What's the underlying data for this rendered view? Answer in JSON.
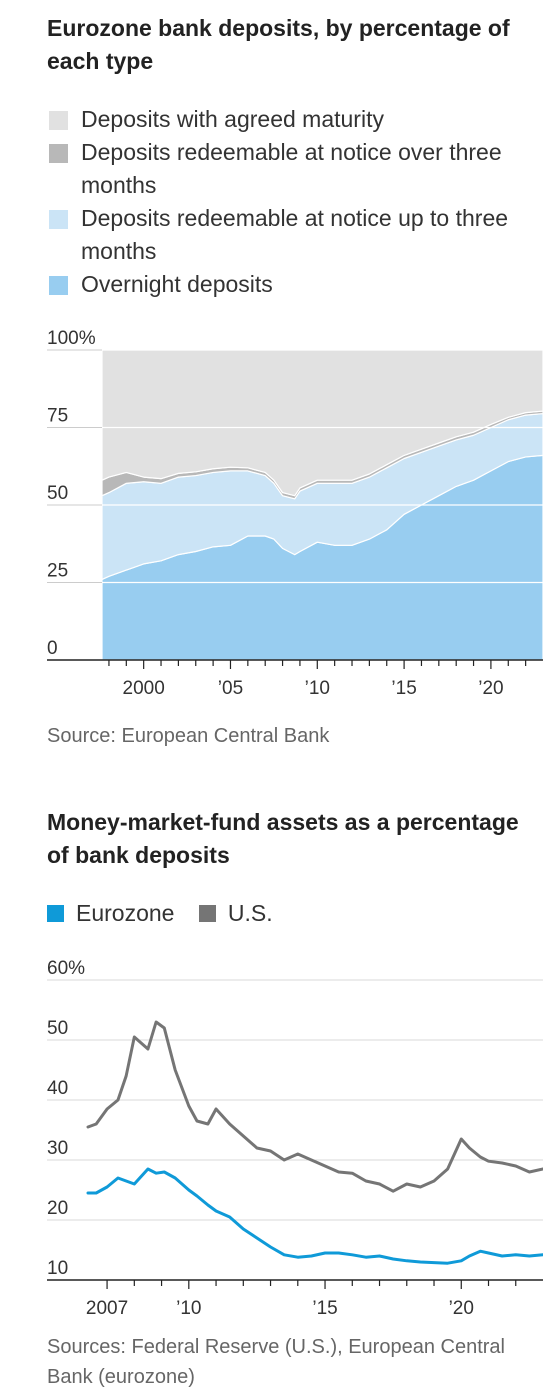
{
  "chart_data": [
    {
      "type": "area",
      "stacked": true,
      "title": "Eurozone bank deposits, by percentage of each type",
      "y_unit_label": "100%",
      "ylim": [
        0,
        100
      ],
      "yticks": [
        "0",
        "25",
        "50",
        "75",
        "100%"
      ],
      "xlim": [
        1997.5,
        2023
      ],
      "xticks": [
        {
          "value": 2000,
          "label": "2000"
        },
        {
          "value": 2005,
          "label": "’05"
        },
        {
          "value": 2010,
          "label": "’10"
        },
        {
          "value": 2015,
          "label": "’15"
        },
        {
          "value": 2020,
          "label": "’20"
        }
      ],
      "grid": true,
      "legend_position": "top",
      "source": "Source: European Central Bank",
      "x": [
        1997.6,
        1998,
        1999,
        2000,
        2001,
        2002,
        2003,
        2004,
        2005,
        2006,
        2007,
        2007.5,
        2008,
        2008.7,
        2009,
        2010,
        2011,
        2012,
        2013,
        2014,
        2015,
        2016,
        2017,
        2018,
        2019,
        2020,
        2021,
        2022,
        2023
      ],
      "series": [
        {
          "name": "Overnight deposits",
          "color": "#98cdf0",
          "values": [
            26,
            27,
            29,
            31,
            32,
            34,
            35,
            36.5,
            37,
            40,
            40,
            39,
            36,
            34,
            35,
            38,
            37,
            37,
            39,
            42,
            47,
            50,
            53,
            56,
            58,
            61,
            64,
            65.5,
            66
          ]
        },
        {
          "name": "Deposits redeemable at notice up to three months",
          "color": "#cbe4f6",
          "values": [
            27,
            27,
            28,
            26.5,
            25,
            25,
            24.5,
            24,
            24,
            21,
            19.5,
            18,
            17,
            18,
            19.5,
            19,
            20,
            20,
            20,
            20,
            18,
            17,
            16,
            15,
            14.5,
            14,
            13.5,
            13.5,
            13.5
          ]
        },
        {
          "name": "Deposits redeemable at notice over three months",
          "color": "#b8b8b8",
          "values": [
            5,
            5,
            3.5,
            1.5,
            1.5,
            1.2,
            1.2,
            1.2,
            1.2,
            1,
            1,
            1,
            1,
            1,
            1,
            1,
            1,
            1,
            1,
            1,
            1,
            1,
            1,
            1,
            1,
            1,
            0.8,
            0.8,
            0.8
          ]
        },
        {
          "name": "Deposits with agreed maturity",
          "color": "#e1e1e1",
          "values": [
            42,
            41,
            39.5,
            41,
            41.5,
            39.8,
            39.3,
            38.3,
            37.8,
            38,
            39.5,
            42,
            46,
            47,
            44.5,
            42,
            42,
            42,
            40,
            37,
            34,
            32,
            30,
            28,
            26.5,
            24,
            21.7,
            20.2,
            19.7
          ]
        }
      ]
    },
    {
      "type": "line",
      "title": "Money-market-fund assets as a percentage of bank deposits",
      "y_unit_label": "60%",
      "ylim": [
        10,
        60
      ],
      "yticks": [
        "10",
        "20",
        "30",
        "40",
        "50",
        "60%"
      ],
      "xlim": [
        2006,
        2023
      ],
      "xticks": [
        {
          "value": 2007,
          "label": "2007"
        },
        {
          "value": 2010,
          "label": "’10"
        },
        {
          "value": 2015,
          "label": "’15"
        },
        {
          "value": 2020,
          "label": "’20"
        }
      ],
      "grid": true,
      "legend_position": "top",
      "source": "Sources: Federal Reserve (U.S.), European Central Bank (eurozone)",
      "x": [
        2006.3,
        2006.6,
        2007,
        2007.4,
        2007.7,
        2008,
        2008.5,
        2008.8,
        2009.1,
        2009.5,
        2010,
        2010.3,
        2010.7,
        2011,
        2011.5,
        2012,
        2012.5,
        2013,
        2013.5,
        2014,
        2014.5,
        2015,
        2015.5,
        2016,
        2016.5,
        2017,
        2017.5,
        2018,
        2018.5,
        2019,
        2019.5,
        2020,
        2020.3,
        2020.7,
        2021,
        2021.5,
        2022,
        2022.5,
        2023
      ],
      "series": [
        {
          "name": "Eurozone",
          "color": "#0f9ad8",
          "values": [
            24.5,
            24.5,
            25.5,
            27,
            26.5,
            26,
            28.5,
            27.8,
            28,
            27,
            25,
            24,
            22.5,
            21.5,
            20.5,
            18.5,
            17,
            15.5,
            14.2,
            13.8,
            14,
            14.5,
            14.5,
            14.2,
            13.8,
            14,
            13.5,
            13.2,
            13,
            12.9,
            12.8,
            13.2,
            14,
            14.8,
            14.5,
            14,
            14.2,
            14,
            14.2
          ]
        },
        {
          "name": "U.S.",
          "color": "#757575",
          "values": [
            35.5,
            36,
            38.5,
            40,
            44,
            50.5,
            48.5,
            53,
            52,
            45,
            39,
            36.5,
            36,
            38.5,
            36,
            34,
            32,
            31.5,
            30,
            31,
            30,
            29,
            28,
            27.8,
            26.5,
            26,
            24.8,
            26,
            25.5,
            26.5,
            28.5,
            33.5,
            32,
            30.5,
            29.8,
            29.5,
            29,
            28,
            28.5
          ]
        }
      ]
    }
  ]
}
